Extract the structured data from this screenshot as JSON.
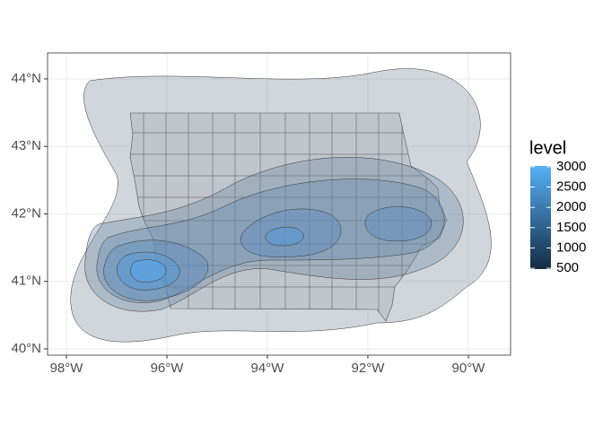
{
  "map": {
    "xlim": [
      -98.375,
      -89.16
    ],
    "ylim": [
      39.907,
      44.385
    ],
    "xticks": [
      {
        "value": -98,
        "label": "98°W"
      },
      {
        "value": -96,
        "label": "96°W"
      },
      {
        "value": -94,
        "label": "94°W"
      },
      {
        "value": -92,
        "label": "92°W"
      },
      {
        "value": -90,
        "label": "90°W"
      }
    ],
    "yticks": [
      {
        "value": 40,
        "label": "40°N"
      },
      {
        "value": 41,
        "label": "41°N"
      },
      {
        "value": 42,
        "label": "42°N"
      },
      {
        "value": 43,
        "label": "43°N"
      },
      {
        "value": 44,
        "label": "44°N"
      }
    ],
    "legend": {
      "title": "level",
      "lim": [
        480,
        3020
      ],
      "ticks": [
        3000,
        2500,
        2000,
        1500,
        1000,
        500
      ],
      "low_color": "#132B43",
      "high_color": "#56B1F7"
    }
  }
}
